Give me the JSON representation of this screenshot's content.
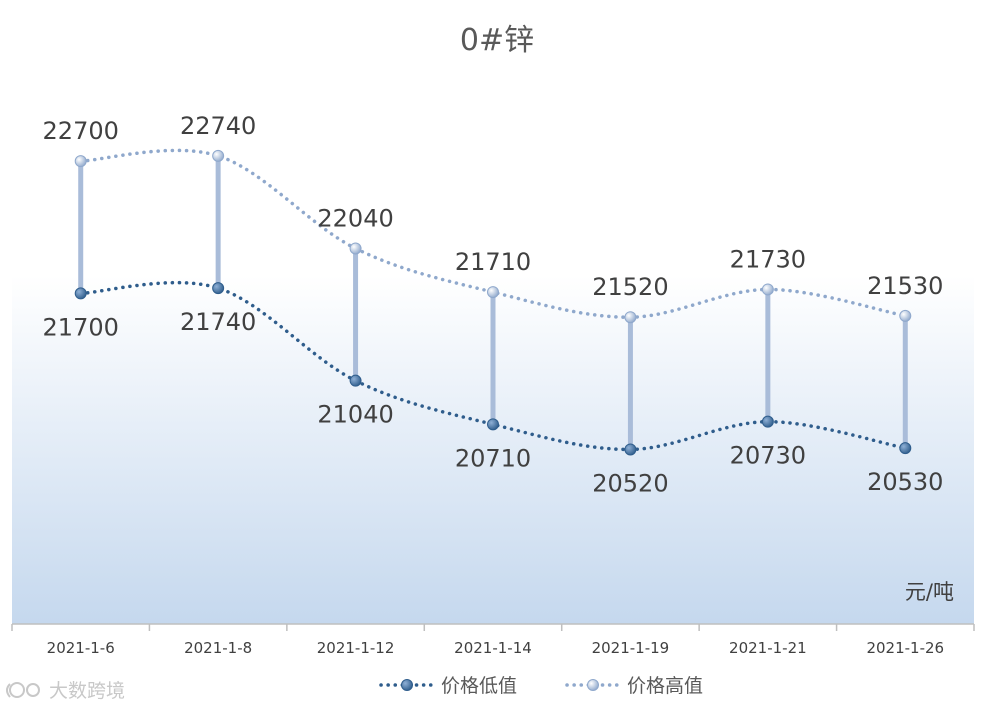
{
  "chart_data": {
    "type": "line",
    "title": "0#锌",
    "categories": [
      "2021-1-6",
      "2021-1-8",
      "2021-1-12",
      "2021-1-14",
      "2021-1-19",
      "2021-1-21",
      "2021-1-26"
    ],
    "series": [
      {
        "name": "价格低值",
        "values": [
          21700,
          21740,
          21040,
          20710,
          20520,
          20730,
          20530
        ],
        "color": "#2f5d8c",
        "labels": [
          "21700",
          "21740",
          "21040",
          "20710",
          "20520",
          "20730",
          "20530"
        ]
      },
      {
        "name": "价格高值",
        "values": [
          22700,
          22740,
          22040,
          21710,
          21520,
          21730,
          21530
        ],
        "color": "#8fa8cc",
        "labels": [
          "22700",
          "22740",
          "22040",
          "21710",
          "21520",
          "21730",
          "21530"
        ]
      }
    ],
    "unit": "元/吨",
    "ylim": [
      19200,
      23450
    ],
    "high_low_lines": true,
    "legend_position": "bottom",
    "grid": false
  },
  "watermark": "大数跨境"
}
